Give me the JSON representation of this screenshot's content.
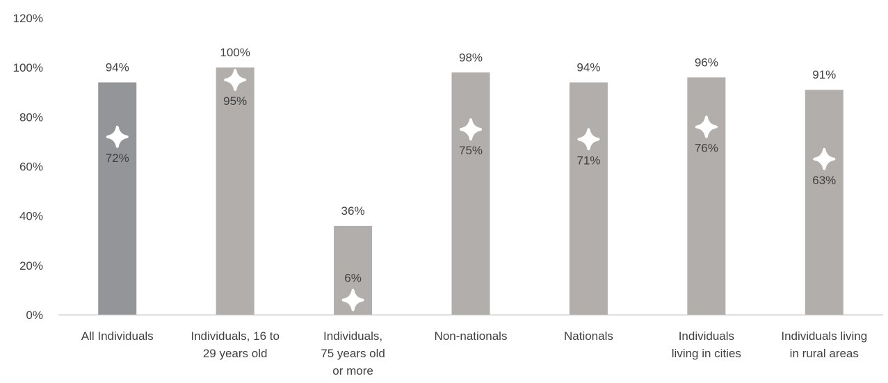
{
  "chart_data": {
    "type": "bar",
    "categories": [
      [
        "All Individuals"
      ],
      [
        "Individuals, 16 to",
        "29 years old"
      ],
      [
        "Individuals,",
        "75 years old",
        "or more"
      ],
      [
        "Non-nationals"
      ],
      [
        "Nationals"
      ],
      [
        "Individuals",
        "living in cities"
      ],
      [
        "Individuals living",
        "in rural areas"
      ]
    ],
    "bar_values": [
      94,
      100,
      36,
      98,
      94,
      96,
      91
    ],
    "bar_labels": [
      "94%",
      "100%",
      "36%",
      "98%",
      "94%",
      "96%",
      "91%"
    ],
    "marker_values": [
      72,
      95,
      6,
      75,
      71,
      76,
      63
    ],
    "marker_labels": [
      "72%",
      "95%",
      "6%",
      "75%",
      "71%",
      "76%",
      "63%"
    ],
    "ylim": [
      0,
      120
    ],
    "yticks": [
      0,
      20,
      40,
      60,
      80,
      100,
      120
    ],
    "ytick_labels": [
      "0%",
      "20%",
      "40%",
      "60%",
      "80%",
      "100%",
      "120%"
    ],
    "grid": false,
    "legend": "none",
    "colors": {
      "highlight_bar": "#939598",
      "bar": "#b1aeac",
      "marker": "#ffffff",
      "axis": "#bfbfbf",
      "text": "#404040"
    }
  }
}
